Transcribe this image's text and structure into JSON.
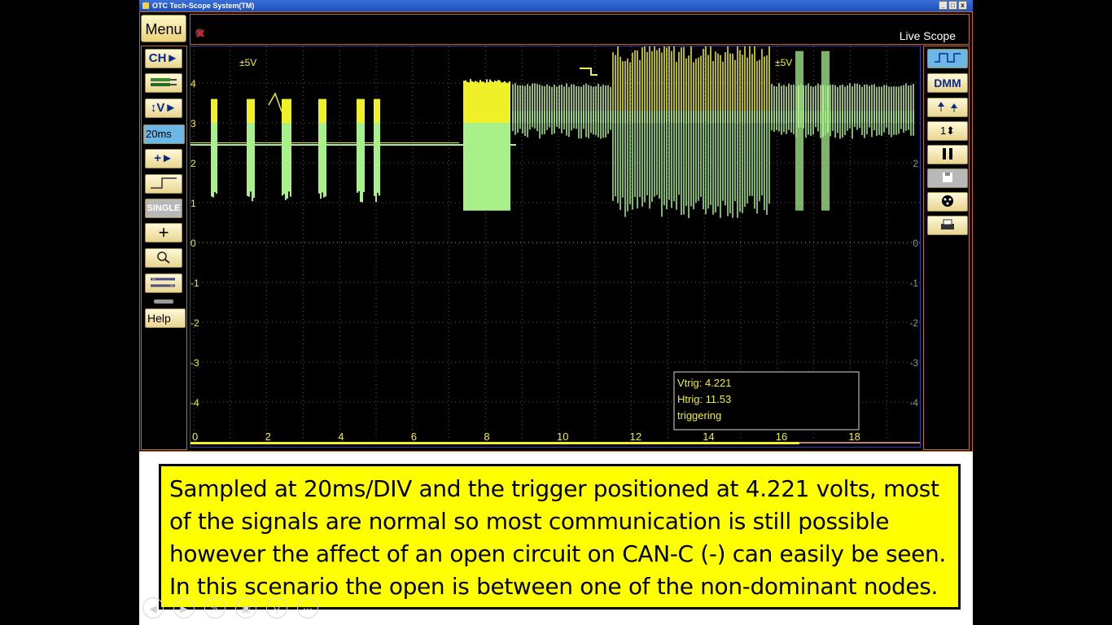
{
  "window": {
    "title": "OTC Tech-Scope System(TM)",
    "controls": [
      "_",
      "□",
      "x"
    ]
  },
  "toolbar_top": {
    "menu_label": "Menu",
    "mode": "Live Scope"
  },
  "left_toolbar": {
    "items": [
      {
        "name": "channel",
        "label": "CH►"
      },
      {
        "name": "probe",
        "label": ""
      },
      {
        "name": "voltage",
        "label": "↕V►"
      },
      {
        "name": "timebase",
        "label": "20ms"
      },
      {
        "name": "offset",
        "label": "+►"
      },
      {
        "name": "trigger",
        "label": ""
      },
      {
        "name": "single",
        "label": "SINGLE"
      },
      {
        "name": "add",
        "label": "+"
      },
      {
        "name": "zoom",
        "label": ""
      },
      {
        "name": "tools",
        "label": ""
      },
      {
        "name": "help",
        "label": "Help"
      }
    ]
  },
  "right_toolbar": {
    "items": [
      {
        "name": "scope",
        "label": ""
      },
      {
        "name": "dmm",
        "label": "DMM"
      },
      {
        "name": "cursors",
        "label": ""
      },
      {
        "name": "channel-select",
        "label": "1⬍"
      },
      {
        "name": "pause",
        "label": ""
      },
      {
        "name": "save",
        "label": ""
      },
      {
        "name": "record",
        "label": ""
      },
      {
        "name": "print",
        "label": ""
      }
    ]
  },
  "scope": {
    "range_left": "±5V",
    "range_right": "±5V",
    "y_ticks": [
      "4",
      "3",
      "2",
      "1",
      "0",
      "-1",
      "-2",
      "-3",
      "-4"
    ],
    "right_ticks": [
      "2",
      "0",
      "-1",
      "-2",
      "-3",
      "-4"
    ],
    "x_ticks": [
      "0",
      "2",
      "4",
      "6",
      "8",
      "10",
      "12",
      "14",
      "16",
      "18"
    ],
    "info": {
      "vtrig": "Vtrig: 4.221",
      "htrig": "Htrig: 11.53",
      "status": "triggering"
    },
    "colors": {
      "trace_yellow": "#f0f028",
      "trace_green": "#a8f08a",
      "grid": "#5a5a5a",
      "frame": "#c46a28"
    }
  },
  "caption": {
    "text": "Sampled at 20ms/DIV and the trigger positioned at 4.221 volts, most of the signals are normal so most communication is still possible however the affect of an open circuit on CAN-C (-) can easily be seen. In this scenario the open is between one of the non-dominant nodes."
  },
  "slideshow_controls": [
    "back-icon",
    "play-icon",
    "pen-icon",
    "slides-icon",
    "zoom-icon",
    "more-icon"
  ]
}
